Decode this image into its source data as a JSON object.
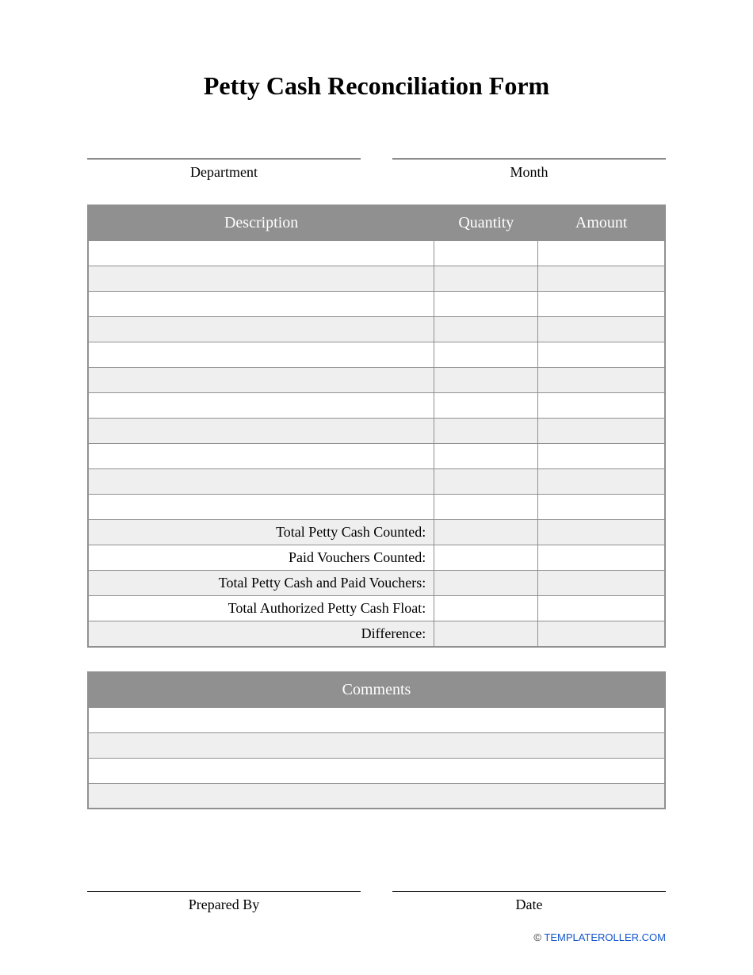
{
  "title": "Petty Cash Reconciliation Form",
  "header_fields": {
    "left_label": "Department",
    "right_label": "Month"
  },
  "main_table": {
    "columns": {
      "description": "Description",
      "quantity": "Quantity",
      "amount": "Amount"
    },
    "blank_rows": 11,
    "summary_rows": [
      {
        "label": "Total Petty Cash Counted:",
        "bg": "gray"
      },
      {
        "label": "Paid Vouchers Counted:",
        "bg": "white"
      },
      {
        "label": "Total Petty Cash and Paid Vouchers:",
        "bg": "gray"
      },
      {
        "label": "Total Authorized Petty Cash Float:",
        "bg": "white"
      },
      {
        "label": "Difference:",
        "bg": "gray"
      }
    ]
  },
  "comments_table": {
    "header": "Comments",
    "blank_rows": 4
  },
  "footer_fields": {
    "left_label": "Prepared By",
    "right_label": "Date"
  },
  "attribution": {
    "copyright": "© ",
    "link_text": "TEMPLATEROLLER.COM"
  },
  "colors": {
    "header_bg": "#909090",
    "header_text": "#ffffff",
    "row_gray": "#efefef",
    "row_white": "#ffffff",
    "border": "#909090",
    "text": "#000000",
    "link": "#1255cc"
  }
}
